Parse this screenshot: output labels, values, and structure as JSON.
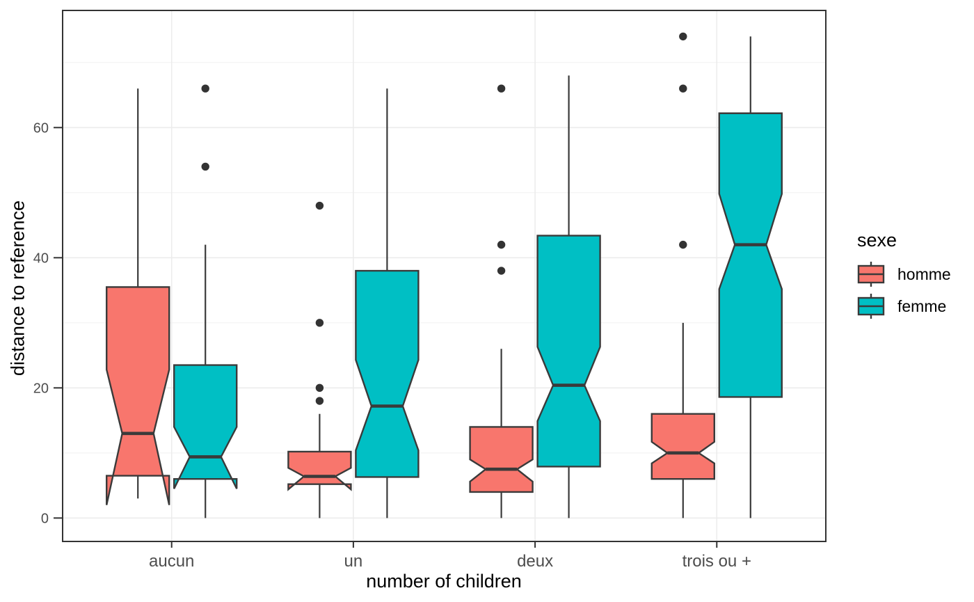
{
  "chart_data": {
    "type": "boxplot",
    "variant": "notched-dodged-vertical",
    "title": "",
    "xlabel": "number of children",
    "ylabel": "distance to reference",
    "categories": [
      "aucun",
      "un",
      "deux",
      "trois ou +"
    ],
    "y_ticks": [
      0,
      20,
      40,
      60
    ],
    "y_minor_gridlines": [
      10,
      30,
      50,
      70
    ],
    "ylim": [
      -3.6,
      78
    ],
    "grid": true,
    "legend": {
      "title": "sexe",
      "position": "right",
      "entries": [
        {
          "label": "homme",
          "color": "#F8766D"
        },
        {
          "label": "femme",
          "color": "#00BFC4"
        }
      ]
    },
    "series": [
      {
        "name": "homme",
        "color": "#F8766D",
        "boxes": [
          {
            "category": "aucun",
            "whisker_low": 3,
            "q1": 6.5,
            "median": 13,
            "q3": 35.5,
            "whisker_high": 66,
            "notch_low": 2,
            "notch_high": 22.8,
            "outliers": []
          },
          {
            "category": "un",
            "whisker_low": 0,
            "q1": 5.2,
            "median": 6.4,
            "q3": 10.2,
            "whisker_high": 16,
            "notch_low": 4.4,
            "notch_high": 7.7,
            "outliers": [
              18,
              20,
              30,
              48
            ]
          },
          {
            "category": "deux",
            "whisker_low": 0,
            "q1": 4,
            "median": 7.5,
            "q3": 14,
            "whisker_high": 26,
            "notch_low": 5.6,
            "notch_high": 9,
            "outliers": [
              38,
              42,
              66
            ]
          },
          {
            "category": "trois ou +",
            "whisker_low": 0,
            "q1": 6,
            "median": 10,
            "q3": 16,
            "whisker_high": 30,
            "notch_low": 8.4,
            "notch_high": 11.7,
            "outliers": [
              42,
              66,
              74
            ]
          }
        ]
      },
      {
        "name": "femme",
        "color": "#00BFC4",
        "boxes": [
          {
            "category": "aucun",
            "whisker_low": 0,
            "q1": 6,
            "median": 9.4,
            "q3": 23.5,
            "whisker_high": 42,
            "notch_low": 4.5,
            "notch_high": 14,
            "outliers": [
              54,
              66
            ]
          },
          {
            "category": "un",
            "whisker_low": 0,
            "q1": 6.3,
            "median": 17.2,
            "q3": 38,
            "whisker_high": 66,
            "notch_low": 10.4,
            "notch_high": 24.3,
            "outliers": []
          },
          {
            "category": "deux",
            "whisker_low": 0,
            "q1": 7.9,
            "median": 20.4,
            "q3": 43.4,
            "whisker_high": 68,
            "notch_low": 14.9,
            "notch_high": 26.3,
            "outliers": []
          },
          {
            "category": "trois ou +",
            "whisker_low": 0,
            "q1": 18.6,
            "median": 42,
            "q3": 62.2,
            "whisker_high": 74,
            "notch_low": 35.2,
            "notch_high": 49.8,
            "outliers": []
          }
        ]
      }
    ],
    "style": {
      "background": "#FFFFFF",
      "box_stroke": "#3A3A3A",
      "panel_border": "#333333",
      "grid_major_color": "#ECECEC",
      "grid_minor_color": "#F1F1F1",
      "tick_color": "#333333",
      "tick_label_color": "#4D4D4D",
      "axis_title_color": "#000000",
      "outlier_color": "#333333"
    }
  }
}
